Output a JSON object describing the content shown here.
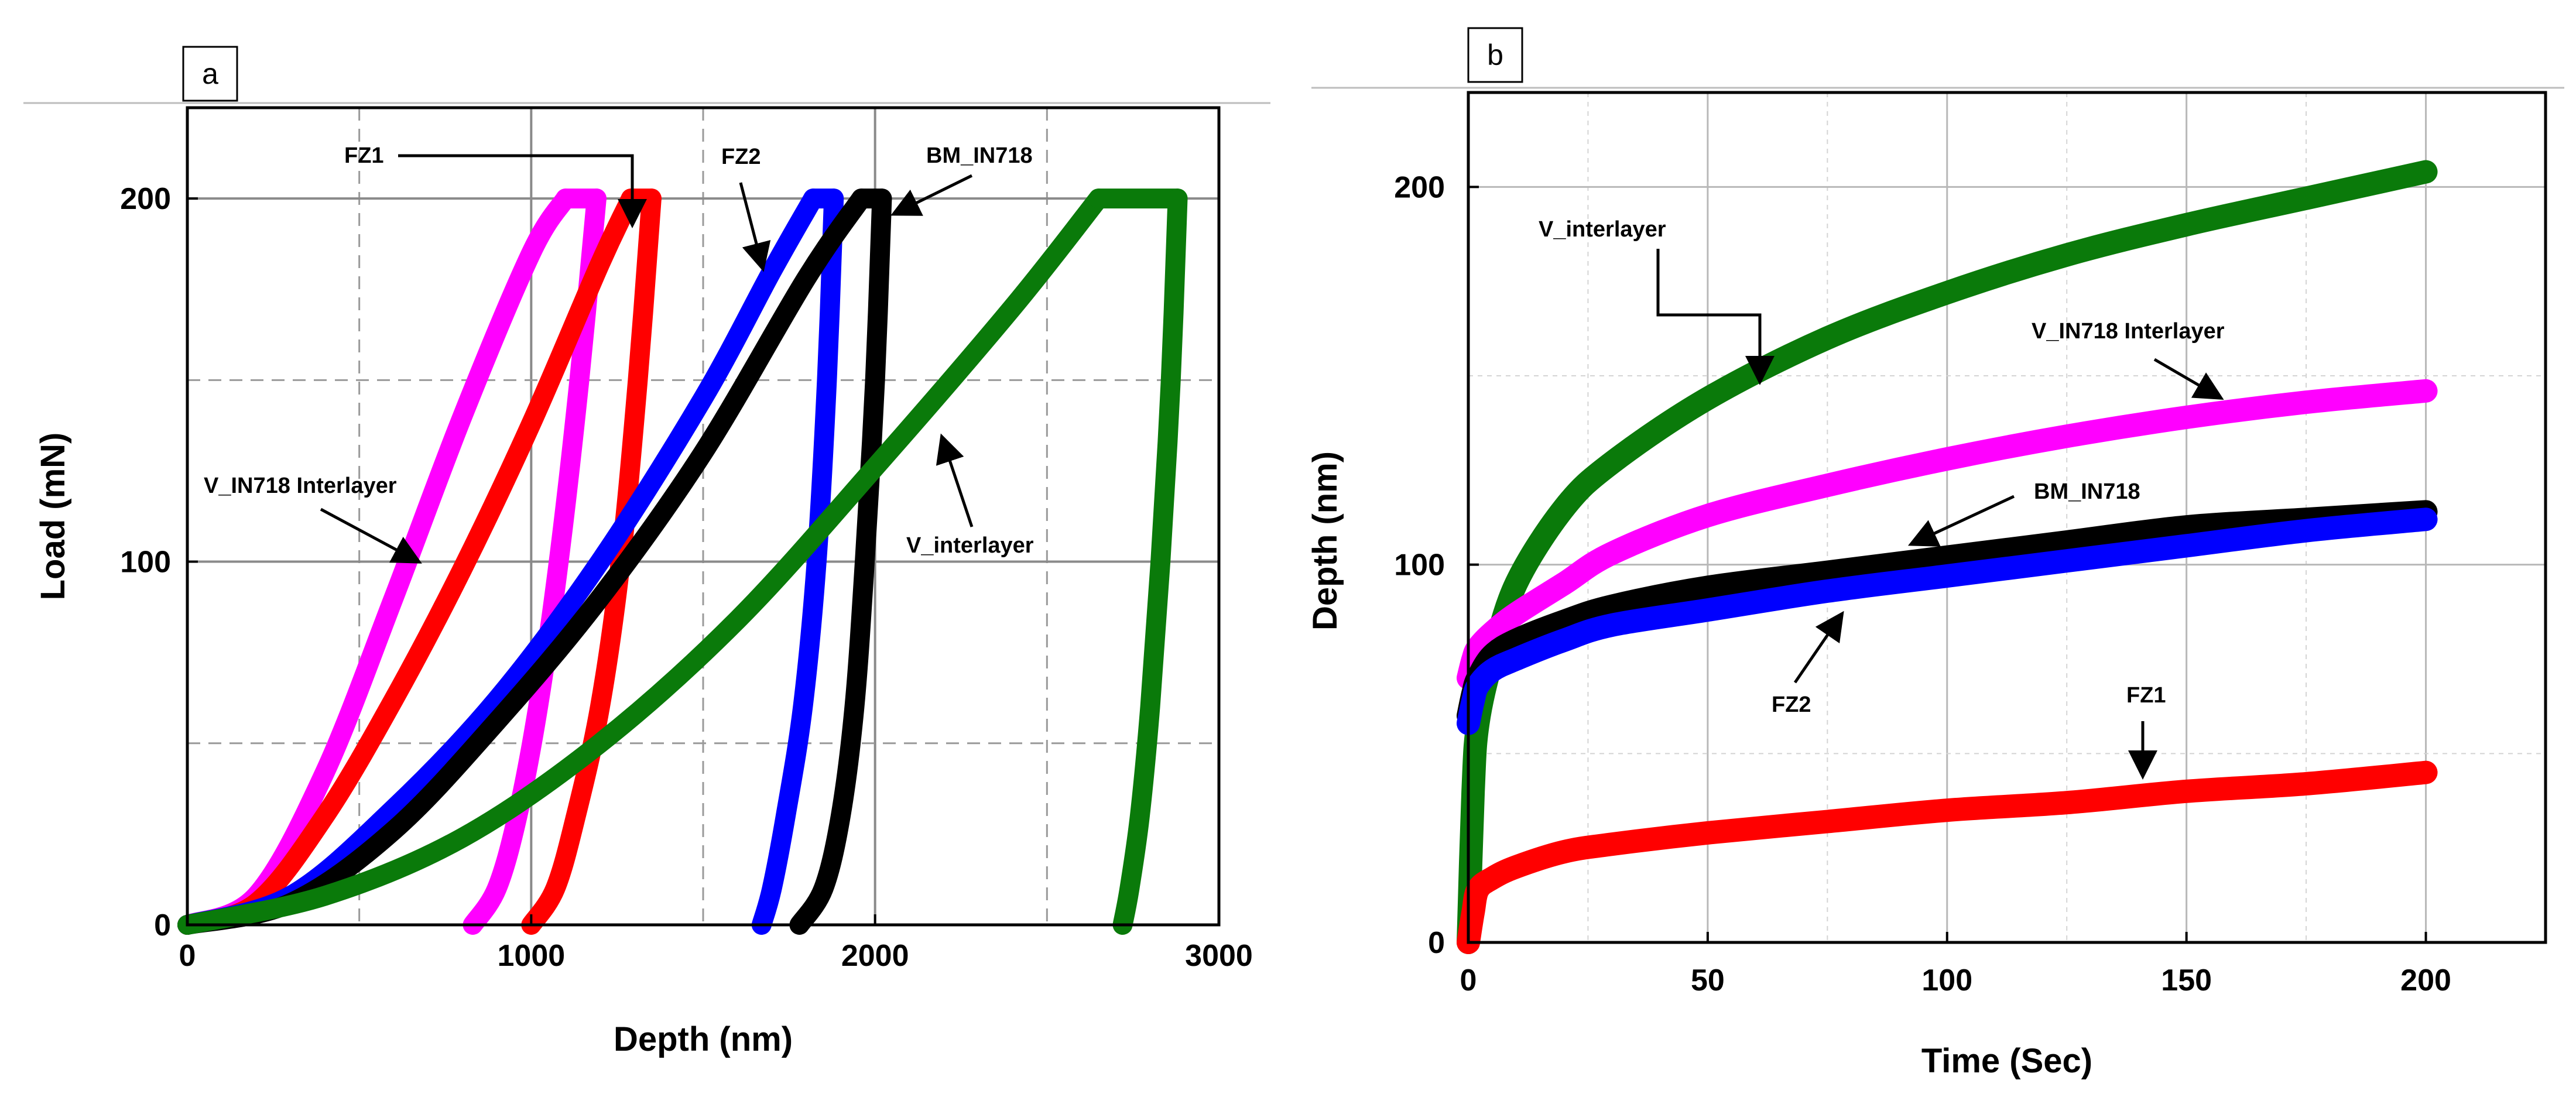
{
  "chart_data": [
    {
      "panel_label": "a",
      "type": "line",
      "xlabel": "Depth (nm)",
      "ylabel": "Load (mN)",
      "xlim": [
        0,
        3000
      ],
      "ylim": [
        0,
        225
      ],
      "xticks": [
        "0",
        "1000",
        "2000",
        "3000"
      ],
      "yticks": [
        "0",
        "100",
        "200"
      ],
      "grid": true,
      "series": [
        {
          "name": "V_IN718 Interlayer",
          "color": "#ff00ff",
          "loading": {
            "x": [
              0,
              200,
              400,
              600,
              800,
              1000,
              1100
            ],
            "y": [
              0,
              8,
              42,
              90,
              140,
              185,
              200
            ]
          },
          "hold": {
            "x": [
              1100,
              1190
            ],
            "y": [
              200,
              200
            ]
          },
          "unloading": {
            "x": [
              1190,
              1140,
              1080,
              1020,
              960,
              900,
              830
            ],
            "y": [
              200,
              150,
              100,
              60,
              30,
              10,
              0
            ]
          }
        },
        {
          "name": "FZ1",
          "color": "#ff0000",
          "loading": {
            "x": [
              0,
              200,
              400,
              600,
              800,
              1000,
              1200,
              1290
            ],
            "y": [
              0,
              6,
              30,
              62,
              98,
              138,
              182,
              200
            ]
          },
          "hold": {
            "x": [
              1290,
              1350
            ],
            "y": [
              200,
              200
            ]
          },
          "unloading": {
            "x": [
              1350,
              1310,
              1260,
              1200,
              1130,
              1070,
              1000
            ],
            "y": [
              200,
              150,
              100,
              60,
              30,
              10,
              0
            ]
          }
        },
        {
          "name": "FZ2",
          "color": "#0000ff",
          "loading": {
            "x": [
              0,
              300,
              600,
              900,
              1200,
              1500,
              1700,
              1820
            ],
            "y": [
              0,
              8,
              32,
              62,
              100,
              145,
              180,
              200
            ]
          },
          "hold": {
            "x": [
              1820,
              1880
            ],
            "y": [
              200,
              200
            ]
          },
          "unloading": {
            "x": [
              1880,
              1860,
              1830,
              1790,
              1740,
              1700,
              1670
            ],
            "y": [
              200,
              150,
              100,
              60,
              30,
              10,
              0
            ]
          }
        },
        {
          "name": "BM_IN718",
          "color": "#000000",
          "loading": {
            "x": [
              0,
              300,
              600,
              900,
              1200,
              1500,
              1800,
              1960
            ],
            "y": [
              0,
              6,
              26,
              56,
              90,
              130,
              178,
              200
            ]
          },
          "hold": {
            "x": [
              1960,
              2020
            ],
            "y": [
              200,
              200
            ]
          },
          "unloading": {
            "x": [
              2020,
              2000,
              1970,
              1940,
              1900,
              1850,
              1780
            ],
            "y": [
              200,
              150,
              100,
              60,
              30,
              10,
              0
            ]
          }
        },
        {
          "name": "V_interlayer",
          "color": "#0a7a0a",
          "loading": {
            "x": [
              0,
              400,
              800,
              1200,
              1600,
              2000,
              2400,
              2650
            ],
            "y": [
              0,
              8,
              24,
              50,
              84,
              126,
              170,
              200
            ]
          },
          "hold": {
            "x": [
              2650,
              2880
            ],
            "y": [
              200,
              200
            ]
          },
          "unloading": {
            "x": [
              2880,
              2860,
              2830,
              2800,
              2770,
              2740,
              2720
            ],
            "y": [
              200,
              150,
              100,
              60,
              30,
              10,
              0
            ]
          }
        }
      ],
      "annotations": [
        {
          "text": "FZ1",
          "target": "FZ1"
        },
        {
          "text": "FZ2",
          "target": "FZ2"
        },
        {
          "text": "BM_IN718",
          "target": "BM_IN718"
        },
        {
          "text": "V_IN718 Interlayer",
          "target": "V_IN718 Interlayer"
        },
        {
          "text": "V_interlayer",
          "target": "V_interlayer"
        }
      ]
    },
    {
      "panel_label": "b",
      "type": "line",
      "xlabel": "Time (Sec)",
      "ylabel": "Depth (nm)",
      "xlim": [
        0,
        225
      ],
      "ylim": [
        0,
        225
      ],
      "xticks": [
        "0",
        "50",
        "100",
        "150",
        "200"
      ],
      "yticks": [
        "0",
        "100",
        "200"
      ],
      "grid": true,
      "x": [
        0,
        1,
        2,
        5,
        10,
        20,
        30,
        50,
        75,
        100,
        125,
        150,
        175,
        200
      ],
      "series": [
        {
          "name": "V_interlayer",
          "color": "#0a7a0a",
          "values": [
            0,
            40,
            58,
            75,
            95,
            115,
            127,
            144,
            160,
            172,
            182,
            190,
            197,
            204
          ]
        },
        {
          "name": "V_IN718 Interlayer",
          "color": "#ff00ff",
          "values": [
            70,
            75,
            78,
            82,
            87,
            95,
            103,
            113,
            121,
            128,
            134,
            139,
            143,
            146
          ]
        },
        {
          "name": "BM_IN718",
          "color": "#000000",
          "values": [
            60,
            66,
            70,
            76,
            80,
            85,
            89,
            94,
            98,
            102,
            106,
            110,
            112,
            114
          ]
        },
        {
          "name": "FZ2",
          "color": "#0000ff",
          "values": [
            58,
            64,
            68,
            72,
            75,
            80,
            84,
            88,
            93,
            97,
            101,
            105,
            109,
            112
          ]
        },
        {
          "name": "FZ1",
          "color": "#ff0000",
          "values": [
            0,
            8,
            14,
            17,
            20,
            24,
            26,
            29,
            32,
            35,
            37,
            40,
            42,
            45
          ]
        }
      ],
      "annotations": [
        {
          "text": "V_interlayer",
          "target": "V_interlayer"
        },
        {
          "text": "V_IN718 Interlayer",
          "target": "V_IN718 Interlayer"
        },
        {
          "text": "BM_IN718",
          "target": "BM_IN718"
        },
        {
          "text": "FZ2",
          "target": "FZ2"
        },
        {
          "text": "FZ1",
          "target": "FZ1"
        }
      ]
    }
  ]
}
